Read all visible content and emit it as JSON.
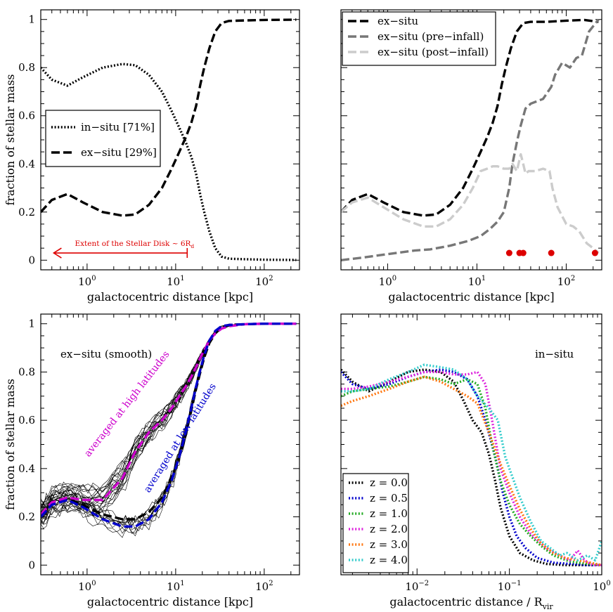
{
  "chart_data": [
    {
      "panel": "top-left",
      "type": "line",
      "xscale": "log",
      "xlim": [
        0.3,
        250
      ],
      "ylim": [
        -0.04,
        1.04
      ],
      "xlabel": "galactocentric distance [kpc]",
      "ylabel": "fraction of stellar mass",
      "xticks": [
        {
          "v": 1,
          "label": "10",
          "exp": "0"
        },
        {
          "v": 10,
          "label": "10",
          "exp": "1"
        },
        {
          "v": 100,
          "label": "10",
          "exp": "2"
        }
      ],
      "yticks": [
        "0",
        "0.2",
        "0.4",
        "0.6",
        "0.8",
        "1"
      ],
      "legend": {
        "position": "center-left",
        "entries": [
          "in−situ [71%]",
          "ex−situ [29%]"
        ]
      },
      "annotation": {
        "text": "Extent of the Stellar Disk ~ 6R",
        "sub": "d",
        "color": "#dd0000",
        "from_kpc": 0.42,
        "to_kpc": 13.5,
        "y": 0.03
      },
      "series": [
        {
          "name": "in−situ [71%]",
          "style": "dotted",
          "color": "#000000",
          "x": [
            0.3,
            0.4,
            0.6,
            0.9,
            1.5,
            2.5,
            3.5,
            5,
            7,
            9,
            11,
            13,
            15,
            17,
            19,
            21,
            24,
            28,
            33,
            40,
            60,
            100,
            230
          ],
          "y": [
            0.8,
            0.75,
            0.725,
            0.76,
            0.8,
            0.815,
            0.81,
            0.77,
            0.7,
            0.62,
            0.55,
            0.49,
            0.43,
            0.36,
            0.27,
            0.2,
            0.12,
            0.05,
            0.015,
            0.006,
            0.004,
            0.002,
            0.001
          ]
        },
        {
          "name": "ex−situ [29%]",
          "style": "dashed",
          "color": "#000000",
          "x": [
            0.3,
            0.4,
            0.6,
            0.9,
            1.5,
            2.5,
            3.5,
            5,
            7,
            9,
            11,
            13,
            15,
            17,
            19,
            21,
            24,
            28,
            33,
            40,
            60,
            100,
            230
          ],
          "y": [
            0.2,
            0.25,
            0.275,
            0.24,
            0.2,
            0.185,
            0.19,
            0.23,
            0.3,
            0.38,
            0.45,
            0.51,
            0.57,
            0.64,
            0.73,
            0.8,
            0.88,
            0.95,
            0.985,
            0.994,
            0.996,
            0.998,
            0.999
          ]
        }
      ]
    },
    {
      "panel": "top-right",
      "type": "line",
      "xscale": "log",
      "xlim": [
        0.3,
        250
      ],
      "ylim": [
        -0.04,
        1.04
      ],
      "xlabel": "galactocentric distance [kpc]",
      "xticks": [
        {
          "v": 1,
          "label": "10",
          "exp": "0"
        },
        {
          "v": 10,
          "label": "10",
          "exp": "1"
        },
        {
          "v": 100,
          "label": "10",
          "exp": "2"
        }
      ],
      "legend": {
        "position": "top-left",
        "entries": [
          "ex−situ",
          "ex−situ (pre−infall)",
          "ex−situ (post−infall)"
        ]
      },
      "markers": {
        "color": "#dd0000",
        "y": 0.03,
        "x": [
          23,
          30,
          33,
          68,
          210
        ]
      },
      "series": [
        {
          "name": "ex−situ",
          "style": "dashed",
          "color": "#000000",
          "x": [
            0.3,
            0.4,
            0.6,
            0.9,
            1.5,
            2.5,
            3.5,
            5,
            7,
            9,
            11,
            13,
            15,
            17,
            19,
            21,
            24,
            28,
            33,
            40,
            60,
            100,
            160,
            230
          ],
          "y": [
            0.2,
            0.25,
            0.275,
            0.24,
            0.2,
            0.185,
            0.19,
            0.23,
            0.3,
            0.38,
            0.45,
            0.51,
            0.57,
            0.64,
            0.73,
            0.8,
            0.88,
            0.95,
            0.985,
            0.99,
            0.99,
            0.995,
            0.998,
            0.99
          ]
        },
        {
          "name": "ex−situ (pre−infall)",
          "style": "dashed",
          "color": "#777777",
          "x": [
            0.3,
            0.5,
            1,
            2,
            3,
            5,
            8,
            11,
            14,
            17,
            20,
            23,
            25,
            28,
            31,
            35,
            40,
            55,
            68,
            75,
            90,
            110,
            130,
            150,
            180,
            230
          ],
          "y": [
            0.0,
            0.01,
            0.025,
            0.04,
            0.045,
            0.06,
            0.08,
            0.1,
            0.13,
            0.16,
            0.2,
            0.3,
            0.4,
            0.49,
            0.56,
            0.63,
            0.65,
            0.67,
            0.72,
            0.77,
            0.82,
            0.8,
            0.84,
            0.85,
            0.95,
            1.0
          ]
        },
        {
          "name": "ex−situ (post−infall)",
          "style": "dashed",
          "color": "#cccccc",
          "x": [
            0.3,
            0.4,
            0.6,
            0.9,
            1.5,
            2.5,
            3.5,
            5,
            7,
            9,
            11,
            13,
            15,
            17,
            20,
            23,
            25,
            28,
            31,
            33,
            35,
            38,
            45,
            55,
            65,
            70,
            80,
            100,
            120,
            140,
            170,
            200,
            230
          ],
          "y": [
            0.2,
            0.24,
            0.26,
            0.22,
            0.17,
            0.14,
            0.14,
            0.17,
            0.23,
            0.3,
            0.37,
            0.38,
            0.39,
            0.39,
            0.38,
            0.38,
            0.4,
            0.37,
            0.44,
            0.4,
            0.36,
            0.37,
            0.37,
            0.38,
            0.37,
            0.3,
            0.22,
            0.15,
            0.14,
            0.12,
            0.07,
            0.05,
            0.03
          ]
        }
      ]
    },
    {
      "panel": "bottom-left",
      "type": "line",
      "xscale": "log",
      "xlim": [
        0.3,
        250
      ],
      "ylim": [
        -0.04,
        1.04
      ],
      "xlabel": "galactocentric distance [kpc]",
      "ylabel": "fraction of stellar mass",
      "xticks": [
        {
          "v": 1,
          "label": "10",
          "exp": "0"
        },
        {
          "v": 10,
          "label": "10",
          "exp": "1"
        },
        {
          "v": 100,
          "label": "10",
          "exp": "2"
        }
      ],
      "yticks": [
        "0",
        "0.2",
        "0.4",
        "0.6",
        "0.8",
        "1"
      ],
      "label": "ex−situ (smooth)",
      "texts": [
        {
          "text": "averaged at high latitudes",
          "color": "#cc00cc"
        },
        {
          "text": "averaged at low latitudes",
          "color": "#0000cc"
        }
      ],
      "series": [
        {
          "name": "ex−situ (smooth)",
          "style": "dashed",
          "color": "#000000",
          "x": [
            0.3,
            0.4,
            0.6,
            0.9,
            1.5,
            2.5,
            3.5,
            5,
            7,
            9,
            11,
            13,
            15,
            17,
            19,
            21,
            24,
            28,
            33,
            40,
            60,
            100,
            230
          ],
          "y": [
            0.21,
            0.26,
            0.275,
            0.25,
            0.21,
            0.19,
            0.19,
            0.22,
            0.28,
            0.36,
            0.45,
            0.54,
            0.64,
            0.73,
            0.8,
            0.86,
            0.92,
            0.96,
            0.985,
            0.995,
            0.998,
            1.0,
            1.0
          ]
        },
        {
          "name": "averaged at high latitudes",
          "style": "dashed",
          "color": "#cc00cc",
          "x": [
            0.3,
            0.4,
            0.6,
            0.9,
            1.5,
            2.5,
            3.5,
            5,
            7,
            9,
            11,
            13,
            15,
            17,
            19,
            21,
            24,
            28,
            33,
            40,
            60,
            100,
            230
          ],
          "y": [
            0.21,
            0.26,
            0.28,
            0.27,
            0.27,
            0.36,
            0.47,
            0.55,
            0.6,
            0.65,
            0.7,
            0.74,
            0.78,
            0.82,
            0.86,
            0.89,
            0.93,
            0.96,
            0.98,
            0.99,
            0.998,
            1.0,
            1.0
          ]
        },
        {
          "name": "averaged at low latitudes",
          "style": "dashed",
          "color": "#0000cc",
          "x": [
            0.3,
            0.4,
            0.6,
            0.9,
            1.5,
            2.5,
            3.5,
            5,
            7,
            9,
            11,
            13,
            15,
            17,
            19,
            21,
            24,
            28,
            33,
            40,
            60,
            100,
            230
          ],
          "y": [
            0.2,
            0.25,
            0.27,
            0.24,
            0.19,
            0.16,
            0.16,
            0.19,
            0.26,
            0.35,
            0.45,
            0.55,
            0.65,
            0.74,
            0.81,
            0.87,
            0.93,
            0.97,
            0.99,
            0.995,
            0.998,
            1.0,
            1.0
          ]
        }
      ]
    },
    {
      "panel": "bottom-right",
      "type": "line",
      "xscale": "log",
      "xlim": [
        0.0015,
        1.0
      ],
      "ylim": [
        -0.04,
        1.04
      ],
      "xlabel": "galactocentric distance / R",
      "xlabel_sub": "vir",
      "xticks": [
        {
          "v": 0.01,
          "label": "10",
          "exp": "−2"
        },
        {
          "v": 0.1,
          "label": "10",
          "exp": "−1"
        },
        {
          "v": 1,
          "label": "10",
          "exp": "0"
        }
      ],
      "label": "in−situ",
      "legend": {
        "position": "bottom-left",
        "entries": [
          "z = 0.0",
          "z = 0.5",
          "z = 1.0",
          "z = 2.0",
          "z = 3.0",
          "z = 4.0"
        ]
      },
      "series": [
        {
          "name": "z = 0.0",
          "style": "dotted",
          "color": "#000000",
          "x": [
            0.0015,
            0.002,
            0.003,
            0.005,
            0.008,
            0.012,
            0.018,
            0.025,
            0.032,
            0.04,
            0.05,
            0.06,
            0.07,
            0.08,
            0.1,
            0.13,
            0.18,
            0.25,
            0.4,
            0.6,
            1.0
          ],
          "y": [
            0.81,
            0.76,
            0.72,
            0.76,
            0.8,
            0.81,
            0.8,
            0.76,
            0.68,
            0.6,
            0.55,
            0.46,
            0.35,
            0.24,
            0.12,
            0.05,
            0.02,
            0.005,
            0.0,
            0.0,
            0.0
          ]
        },
        {
          "name": "z = 0.5",
          "style": "dotted",
          "color": "#0000cc",
          "x": [
            0.0015,
            0.002,
            0.003,
            0.005,
            0.008,
            0.012,
            0.018,
            0.025,
            0.035,
            0.045,
            0.055,
            0.07,
            0.085,
            0.1,
            0.12,
            0.15,
            0.2,
            0.3,
            0.45,
            0.7,
            1.0
          ],
          "y": [
            0.8,
            0.75,
            0.73,
            0.75,
            0.78,
            0.8,
            0.81,
            0.8,
            0.77,
            0.7,
            0.6,
            0.45,
            0.3,
            0.2,
            0.12,
            0.07,
            0.03,
            0.01,
            0.005,
            0.0,
            0.0
          ]
        },
        {
          "name": "z = 1.0",
          "style": "dotted",
          "color": "#22aa22",
          "x": [
            0.0015,
            0.002,
            0.003,
            0.005,
            0.008,
            0.012,
            0.018,
            0.025,
            0.035,
            0.045,
            0.055,
            0.065,
            0.08,
            0.1,
            0.13,
            0.17,
            0.22,
            0.3,
            0.45,
            0.7,
            1.0
          ],
          "y": [
            0.7,
            0.72,
            0.73,
            0.74,
            0.76,
            0.78,
            0.77,
            0.75,
            0.77,
            0.75,
            0.65,
            0.5,
            0.35,
            0.25,
            0.17,
            0.12,
            0.08,
            0.04,
            0.015,
            0.005,
            0.0
          ]
        },
        {
          "name": "z = 2.0",
          "style": "dotted",
          "color": "#dd22dd",
          "x": [
            0.0015,
            0.002,
            0.003,
            0.005,
            0.008,
            0.012,
            0.018,
            0.025,
            0.035,
            0.045,
            0.055,
            0.065,
            0.08,
            0.1,
            0.13,
            0.17,
            0.25,
            0.35,
            0.45,
            0.55,
            0.65,
            0.8,
            1.0
          ],
          "y": [
            0.73,
            0.73,
            0.74,
            0.76,
            0.78,
            0.8,
            0.8,
            0.79,
            0.79,
            0.8,
            0.75,
            0.6,
            0.4,
            0.3,
            0.2,
            0.13,
            0.07,
            0.04,
            0.02,
            0.06,
            0.02,
            0.0,
            0.0
          ]
        },
        {
          "name": "z = 3.0",
          "style": "dotted",
          "color": "#ff7711",
          "x": [
            0.0015,
            0.002,
            0.003,
            0.005,
            0.008,
            0.012,
            0.018,
            0.025,
            0.035,
            0.045,
            0.06,
            0.08,
            0.1,
            0.13,
            0.17,
            0.22,
            0.3,
            0.4,
            0.55,
            0.75,
            1.0
          ],
          "y": [
            0.66,
            0.68,
            0.7,
            0.73,
            0.76,
            0.78,
            0.76,
            0.73,
            0.7,
            0.67,
            0.55,
            0.42,
            0.33,
            0.23,
            0.15,
            0.09,
            0.05,
            0.03,
            0.02,
            0.01,
            0.0
          ]
        },
        {
          "name": "z = 4.0",
          "style": "dotted",
          "color": "#33cccc",
          "x": [
            0.0015,
            0.002,
            0.003,
            0.005,
            0.008,
            0.012,
            0.018,
            0.025,
            0.035,
            0.045,
            0.06,
            0.075,
            0.09,
            0.1,
            0.13,
            0.17,
            0.22,
            0.3,
            0.35,
            0.42,
            0.55,
            0.7,
            0.85,
            1.0
          ],
          "y": [
            0.72,
            0.72,
            0.73,
            0.77,
            0.8,
            0.83,
            0.82,
            0.81,
            0.77,
            0.7,
            0.65,
            0.6,
            0.45,
            0.4,
            0.28,
            0.18,
            0.1,
            0.06,
            0.04,
            0.05,
            0.02,
            0.04,
            0.02,
            0.1
          ]
        }
      ]
    }
  ]
}
